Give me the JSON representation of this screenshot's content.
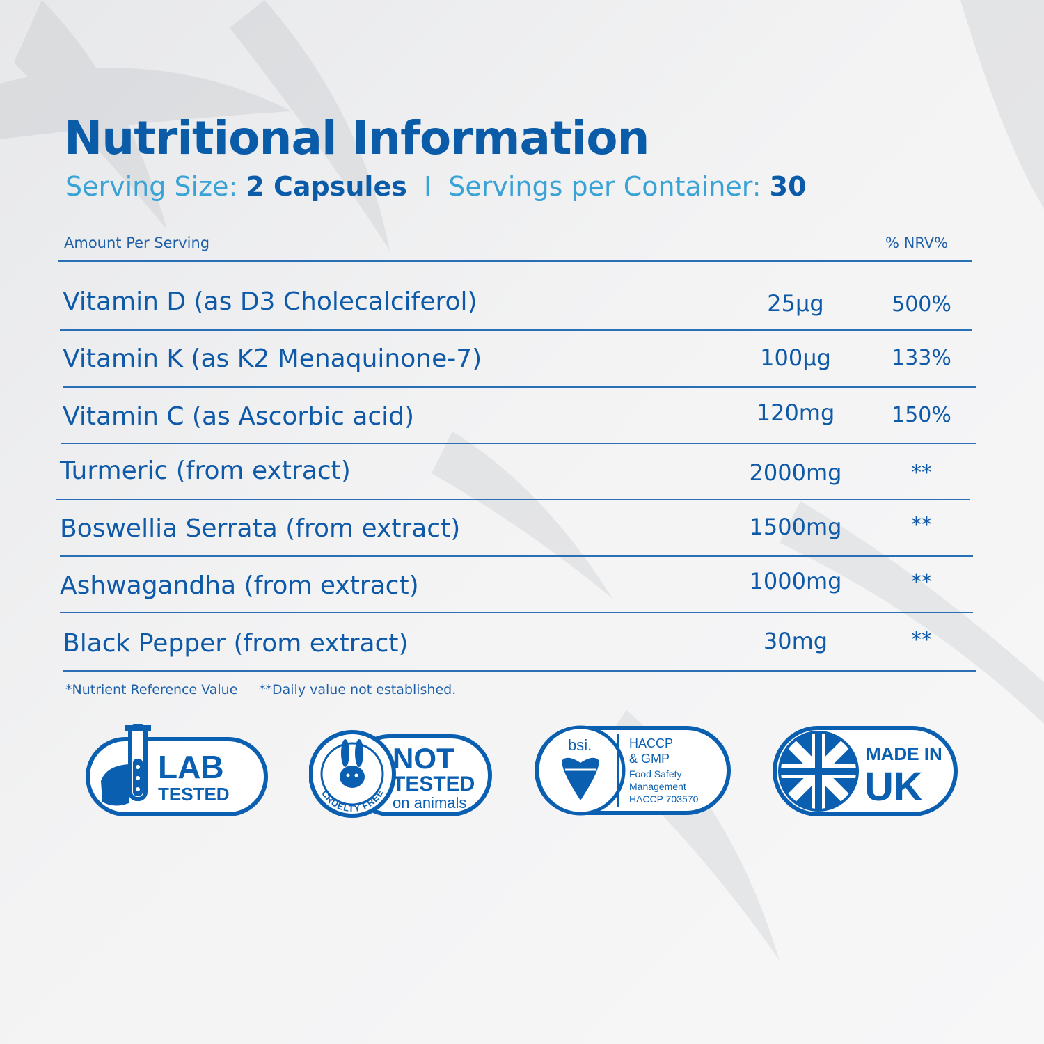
{
  "title": "Nutritional Information",
  "serving": {
    "size_label": "Serving Size:",
    "size_value": "2 Capsules",
    "separator": "I",
    "per_container_label": "Servings per Container:",
    "per_container_value": "30"
  },
  "table": {
    "header_left": "Amount Per Serving",
    "header_right": "% NRV%",
    "rows": [
      {
        "name": "Vitamin D (as D3 Cholecalciferol)",
        "amount": "25µg",
        "nrv": "500%"
      },
      {
        "name": "Vitamin K (as K2 Menaquinone-7)",
        "amount": "100µg",
        "nrv": "133%"
      },
      {
        "name": "Vitamin C (as Ascorbic acid)",
        "amount": "120mg",
        "nrv": "150%"
      },
      {
        "name": "Turmeric (from extract)",
        "amount": "2000mg",
        "nrv": "**"
      },
      {
        "name": "Boswellia Serrata (from extract)",
        "amount": "1500mg",
        "nrv": "**"
      },
      {
        "name": "Ashwagandha (from extract)",
        "amount": "1000mg",
        "nrv": "**"
      },
      {
        "name": "Black Pepper (from extract)",
        "amount": "30mg",
        "nrv": "**"
      }
    ]
  },
  "footnotes": {
    "nrv": "*Nutrient Reference Value",
    "daily": "**Daily value not established."
  },
  "badges": {
    "lab": {
      "line1": "LAB",
      "line2": "TESTED"
    },
    "cruelty": {
      "ring": "CRUELTY FREE",
      "line1": "NOT",
      "line2": "TESTED",
      "line3": "on animals"
    },
    "bsi": {
      "logo": "bsi.",
      "line1": "HACCP",
      "line2": "& GMP",
      "line3": "Food Safety",
      "line4": "Management",
      "line5": "HACCP 703570"
    },
    "uk": {
      "line1": "MADE IN",
      "line2": "UK"
    }
  },
  "colors": {
    "primary": "#0a5ba8",
    "accent": "#3aa3d6",
    "rule": "#2a6fb5"
  },
  "icons": [
    "test-tube-hand-icon",
    "rabbit-icon",
    "bsi-heart-icon",
    "union-jack-icon"
  ]
}
